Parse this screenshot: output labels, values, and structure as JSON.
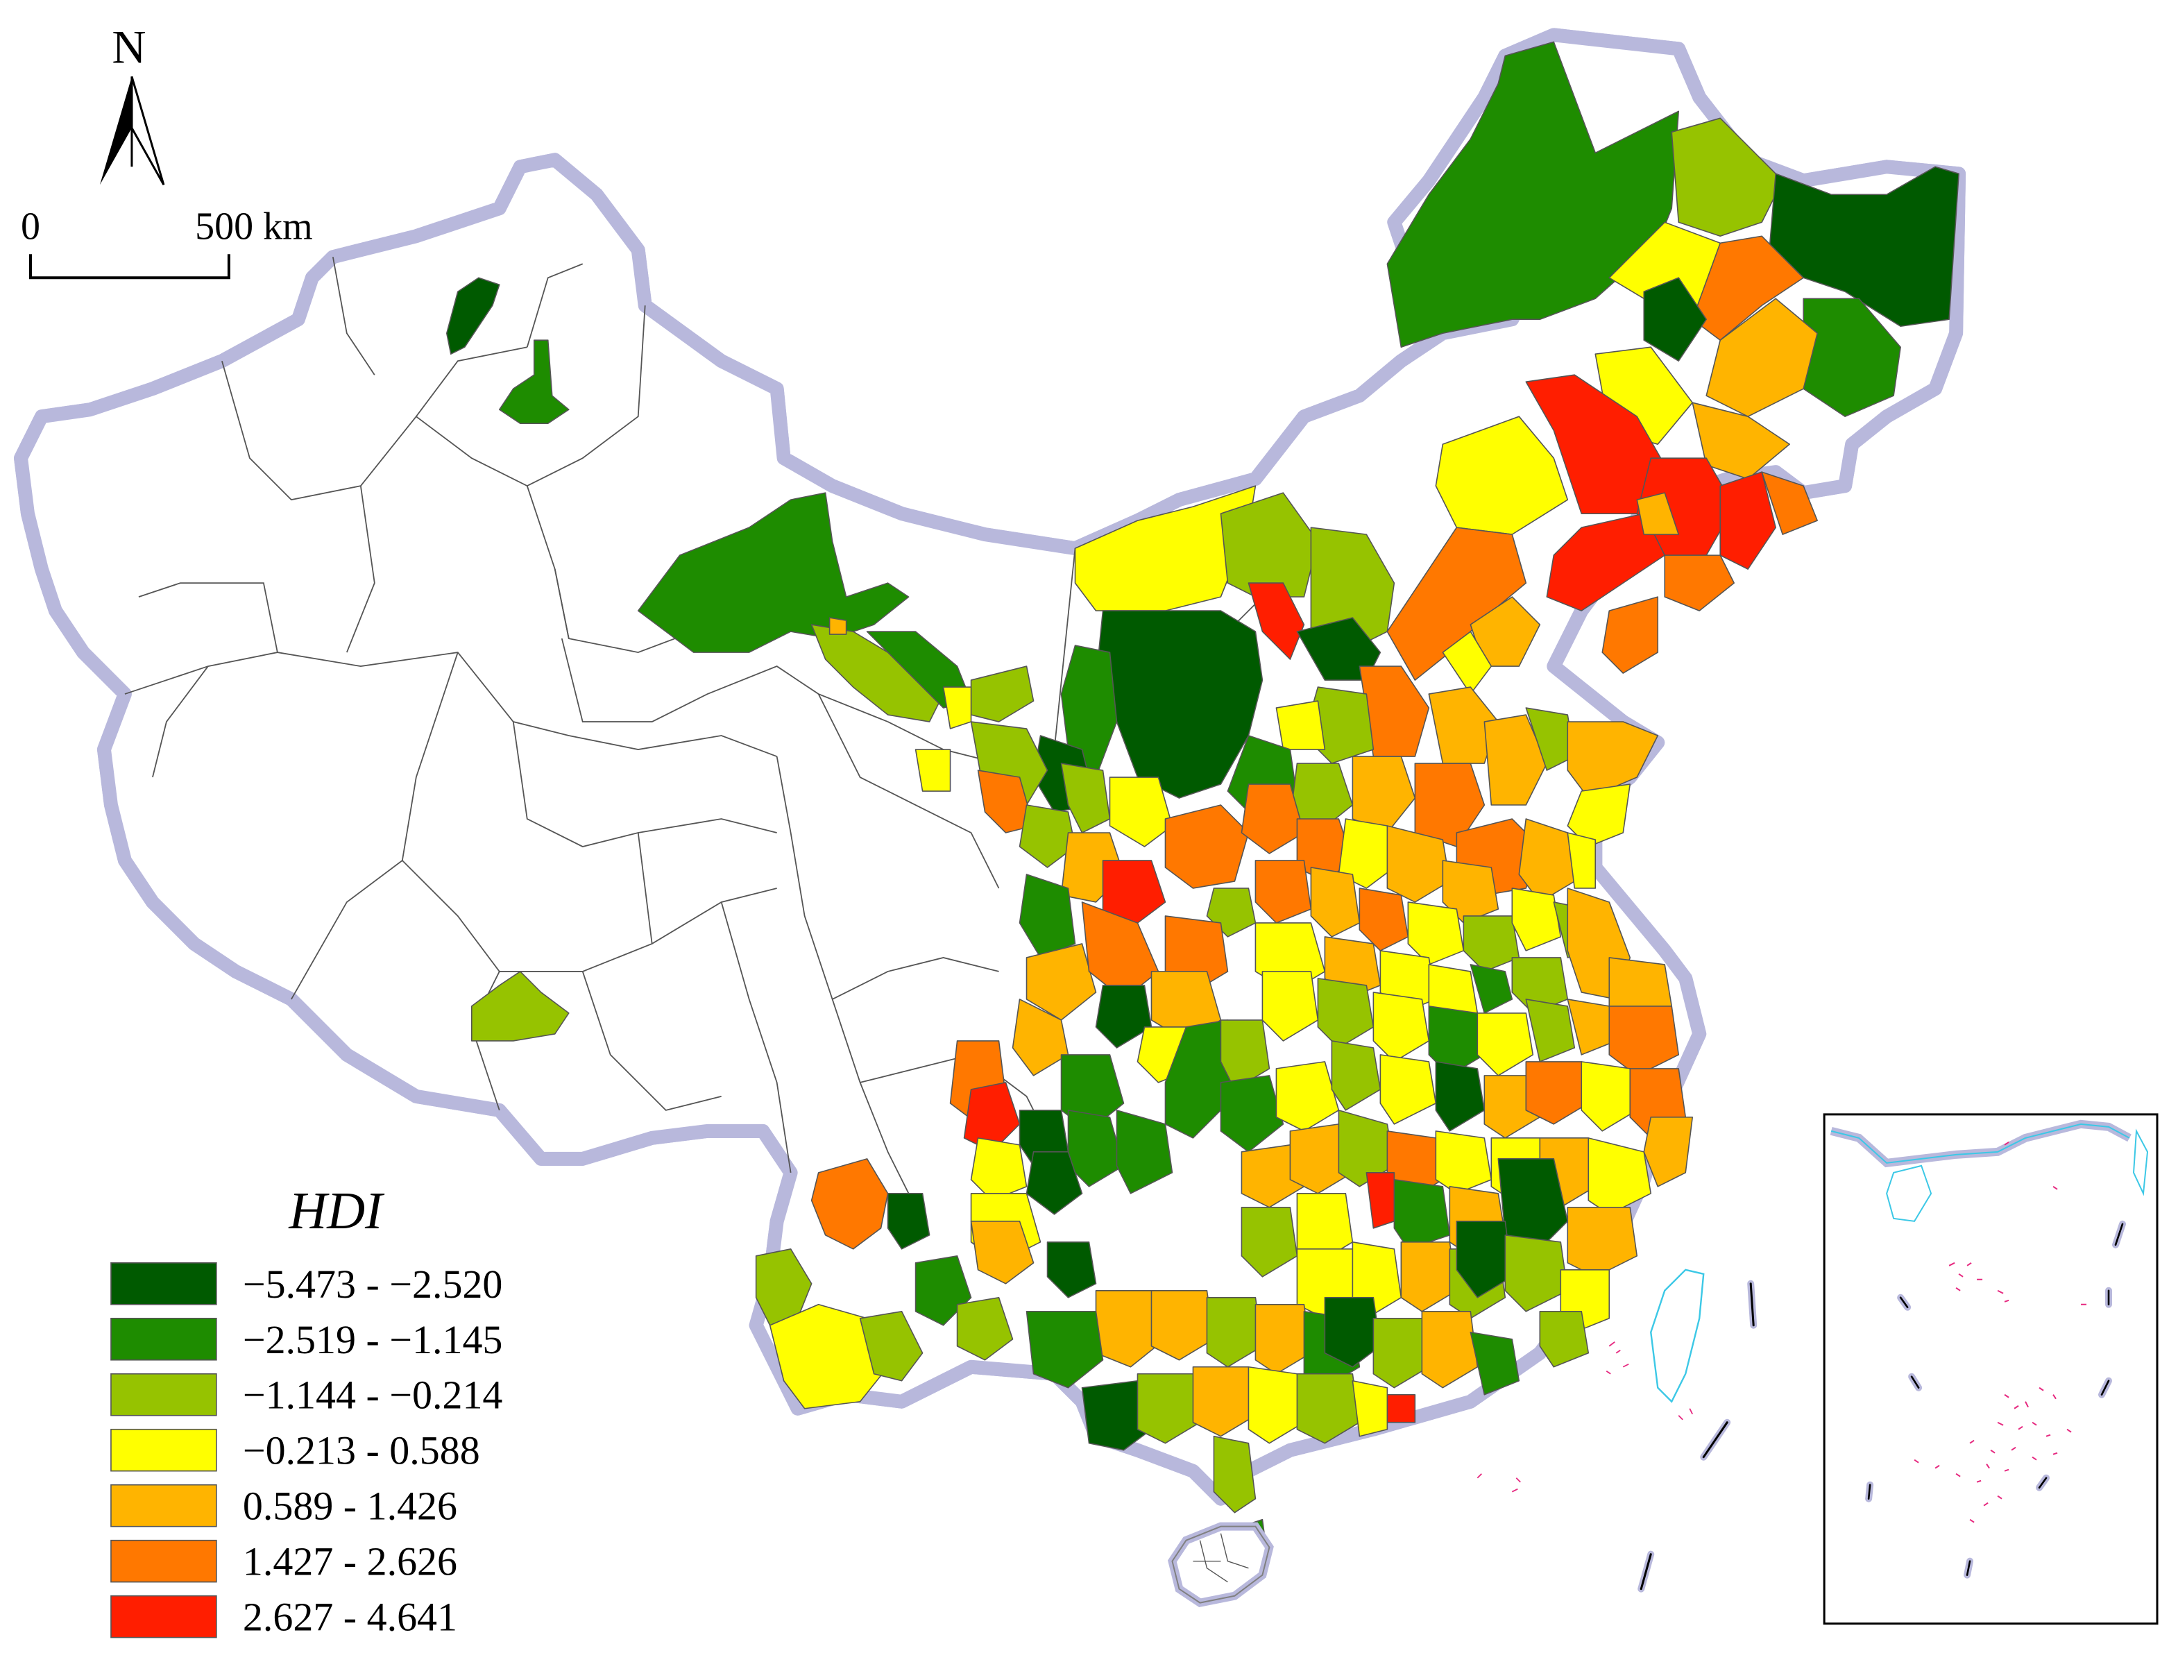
{
  "north_arrow": {
    "label": "N"
  },
  "scale_bar": {
    "start_label": "0",
    "end_label": "500 km"
  },
  "legend": {
    "title": "HDI",
    "classes": [
      {
        "label": "−5.473 - −2.520",
        "color": "#005a00"
      },
      {
        "label": "−2.519 - −1.145",
        "color": "#1e8c00"
      },
      {
        "label": "−1.144 - −0.214",
        "color": "#96c300"
      },
      {
        "label": "−0.213 - 0.588",
        "color": "#ffff00"
      },
      {
        "label": "0.589 - 1.426",
        "color": "#ffb400"
      },
      {
        "label": "1.427 - 2.626",
        "color": "#ff7800"
      },
      {
        "label": "2.627 - 4.641",
        "color": "#ff1e00"
      }
    ]
  },
  "map_colors": {
    "no_data": "#ffffff",
    "boundary": "#555555",
    "coast_halo": "#b8b8dc",
    "inset_water": "#3cc8e6",
    "inset_islands": "#e6287f"
  }
}
